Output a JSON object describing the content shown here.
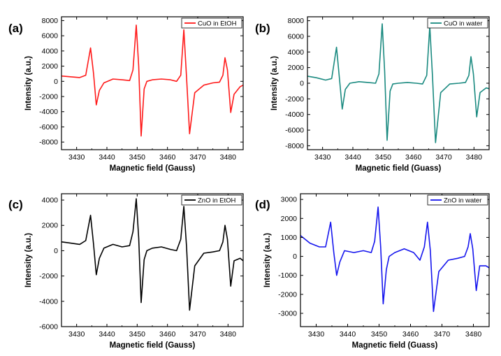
{
  "chart_data": [
    {
      "type": "line",
      "panel_label": "(a)",
      "series_name": "CuO in EtOH",
      "color": "#ff1a1a",
      "xlabel": "Magnetic field (Gauss)",
      "ylabel": "Intensity (a.u.)",
      "xlim": [
        3425,
        3485
      ],
      "ylim": [
        -9000,
        8500
      ],
      "xticks": [
        3430,
        3440,
        3450,
        3460,
        3470,
        3480
      ],
      "yticks": [
        -8000,
        -6000,
        -4000,
        -2000,
        0,
        2000,
        4000,
        6000,
        8000
      ],
      "x": [
        3425,
        3428,
        3431,
        3433,
        3434.6,
        3435.6,
        3436.5,
        3437.5,
        3439,
        3442,
        3445,
        3447.5,
        3448.6,
        3449.7,
        3450.5,
        3451.3,
        3452.3,
        3453.2,
        3455,
        3458,
        3461,
        3463,
        3464.4,
        3465.4,
        3466.3,
        3467.3,
        3469,
        3472,
        3475,
        3477.2,
        3478.3,
        3479,
        3479.8,
        3480.9,
        3482,
        3484,
        3485
      ],
      "y": [
        700,
        600,
        500,
        800,
        4400,
        1000,
        -3100,
        -1200,
        -200,
        300,
        200,
        100,
        1500,
        7400,
        2000,
        -7200,
        -1000,
        0,
        200,
        300,
        200,
        0,
        800,
        6800,
        500,
        -6900,
        -1500,
        -500,
        -200,
        -100,
        800,
        3100,
        1500,
        -4100,
        -1700,
        -700,
        -500
      ]
    },
    {
      "type": "line",
      "panel_label": "(b)",
      "series_name": "CuO in water",
      "color": "#1a8a80",
      "xlabel": "Magnetic field (Guass)",
      "ylabel": "Intensity (a.u.)",
      "xlim": [
        3425,
        3485
      ],
      "ylim": [
        -8500,
        8500
      ],
      "xticks": [
        3430,
        3440,
        3450,
        3460,
        3470,
        3480
      ],
      "yticks": [
        -8000,
        -6000,
        -4000,
        -2000,
        0,
        2000,
        4000,
        6000,
        8000
      ],
      "x": [
        3425,
        3428,
        3431,
        3433,
        3434.6,
        3435.6,
        3436.5,
        3437.5,
        3439,
        3442,
        3445,
        3447.5,
        3448.6,
        3449.7,
        3450.5,
        3451.3,
        3452.3,
        3453.2,
        3455,
        3458,
        3461,
        3463,
        3464.4,
        3465.4,
        3466.3,
        3467.3,
        3469,
        3472,
        3475,
        3477.2,
        3478.3,
        3479,
        3479.8,
        3480.9,
        3482,
        3484,
        3485
      ],
      "y": [
        900,
        700,
        400,
        600,
        4600,
        500,
        -3300,
        -800,
        0,
        200,
        100,
        0,
        1200,
        7600,
        1500,
        -7300,
        -1000,
        -100,
        0,
        100,
        0,
        -100,
        1000,
        7300,
        800,
        -7600,
        -1200,
        -100,
        0,
        100,
        1000,
        3400,
        1200,
        -4300,
        -1200,
        -600,
        -700
      ]
    },
    {
      "type": "line",
      "panel_label": "(c)",
      "series_name": "ZnO in EtOH",
      "color": "#000000",
      "xlabel": "Magnetic field (Gauss)",
      "ylabel": "Intensity (a.u.)",
      "xlim": [
        3425,
        3485
      ],
      "ylim": [
        -6000,
        4500
      ],
      "xticks": [
        3430,
        3440,
        3450,
        3460,
        3470,
        3480
      ],
      "yticks": [
        -6000,
        -4000,
        -2000,
        0,
        2000,
        4000
      ],
      "x": [
        3425,
        3428,
        3431,
        3433,
        3434.6,
        3435.6,
        3436.5,
        3437.5,
        3439,
        3442,
        3445,
        3447.5,
        3448.6,
        3449.7,
        3450.5,
        3451.3,
        3452.3,
        3453.2,
        3455,
        3458,
        3461,
        3463,
        3464.4,
        3465.4,
        3466.3,
        3467.3,
        3469,
        3472,
        3475,
        3477.2,
        3478.3,
        3479,
        3479.8,
        3480.9,
        3482,
        3484,
        3485
      ],
      "y": [
        700,
        600,
        500,
        800,
        2800,
        500,
        -1900,
        -600,
        200,
        500,
        300,
        400,
        1500,
        4100,
        1000,
        -4100,
        -700,
        0,
        200,
        300,
        100,
        0,
        900,
        3500,
        300,
        -4700,
        -1200,
        -200,
        -100,
        0,
        700,
        2000,
        900,
        -2800,
        -800,
        -600,
        -800
      ]
    },
    {
      "type": "line",
      "panel_label": "(d)",
      "series_name": "ZnO in water",
      "color": "#1515ee",
      "xlabel": "Magnetic field (Guass)",
      "ylabel": "Intensity (a.u.)",
      "xlim": [
        3425,
        3485
      ],
      "ylim": [
        -3700,
        3300
      ],
      "xticks": [
        3430,
        3440,
        3450,
        3460,
        3470,
        3480
      ],
      "yticks": [
        -3000,
        -2000,
        -1000,
        0,
        1000,
        2000,
        3000
      ],
      "x": [
        3425,
        3428,
        3431,
        3433,
        3434.6,
        3435.6,
        3436.5,
        3437.5,
        3439,
        3442,
        3445,
        3447.5,
        3448.6,
        3449.7,
        3450.5,
        3451.3,
        3452.3,
        3453.2,
        3455,
        3458,
        3461,
        3463,
        3464.4,
        3465.4,
        3466.3,
        3467.3,
        3469,
        3472,
        3475,
        3477.2,
        3478.3,
        3479,
        3479.8,
        3480.9,
        3482,
        3484,
        3485
      ],
      "y": [
        1100,
        700,
        500,
        500,
        1800,
        200,
        -1000,
        -300,
        300,
        200,
        300,
        200,
        800,
        2600,
        500,
        -2500,
        -700,
        0,
        200,
        400,
        200,
        -200,
        500,
        1800,
        300,
        -2900,
        -800,
        -200,
        -100,
        0,
        500,
        1200,
        400,
        -1800,
        -500,
        -500,
        -600
      ]
    }
  ]
}
